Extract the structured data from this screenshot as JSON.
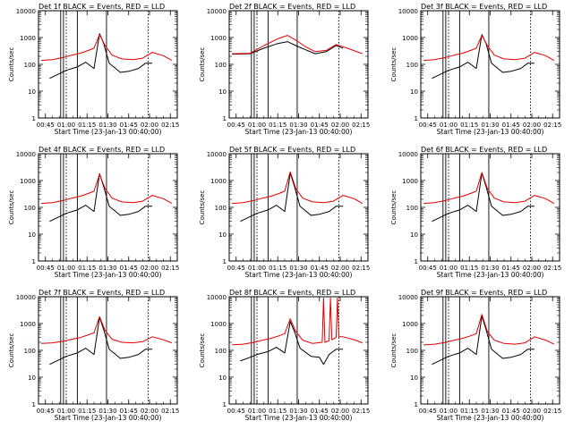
{
  "chart_data": [
    {
      "type": "line",
      "title": "Det 1f BLACK = Events, RED = LLD",
      "xlabel": "Start Time (23-Jan-13 00:40:00)",
      "ylabel": "Counts/sec",
      "yscale": "log",
      "ylim": [
        1,
        10000
      ],
      "x_ticks": [
        "00:45",
        "01:00",
        "01:15",
        "01:30",
        "01:45",
        "02:00",
        "02:15"
      ],
      "y_ticks": [
        "1",
        "10",
        "100",
        "1000",
        "10000"
      ],
      "solid_lines": [
        "00:56",
        "00:58",
        "01:08",
        "01:29"
      ],
      "dotted_lines": [
        "01:00",
        "01:59"
      ],
      "series": [
        {
          "name": "Events",
          "color": "#000000",
          "x": [
            "00:48",
            "00:55",
            "01:00",
            "01:08",
            "01:14",
            "01:20",
            "01:24",
            "01:27",
            "01:31",
            "01:39",
            "01:45",
            "01:52",
            "01:57",
            "02:02"
          ],
          "y": [
            30,
            45,
            60,
            80,
            120,
            70,
            1400,
            600,
            110,
            50,
            55,
            70,
            110,
            110
          ]
        },
        {
          "name": "LLD",
          "color": "#e00000",
          "x": [
            "00:42",
            "00:50",
            "00:58",
            "01:04",
            "01:10",
            "01:16",
            "01:20",
            "01:24",
            "01:28",
            "01:33",
            "01:40",
            "01:48",
            "01:55",
            "02:02",
            "02:10",
            "02:16"
          ],
          "y": [
            140,
            150,
            180,
            220,
            260,
            330,
            400,
            1300,
            500,
            220,
            160,
            150,
            170,
            280,
            210,
            140
          ]
        }
      ]
    },
    {
      "type": "line",
      "title": "Det 2f BLACK = Events, RED = LLD",
      "xlabel": "Start Time (23-Jan-13 00:40:00)",
      "ylabel": "Counts/sec",
      "yscale": "log",
      "ylim": [
        1,
        10000
      ],
      "x_ticks": [
        "00:45",
        "01:00",
        "01:15",
        "01:30",
        "01:45",
        "02:00",
        "02:15"
      ],
      "y_ticks": [
        "1",
        "10",
        "100",
        "1000",
        "10000"
      ],
      "solid_lines": [
        "00:56",
        "00:58",
        "01:08",
        "01:29"
      ],
      "dotted_lines": [
        "01:00",
        "01:59"
      ],
      "series": [
        {
          "name": "Events",
          "color": "#000000",
          "x": [
            "00:42",
            "00:55",
            "01:05",
            "01:15",
            "01:22",
            "01:28",
            "01:35",
            "01:42",
            "01:50",
            "01:57",
            "02:02"
          ],
          "y": [
            240,
            250,
            400,
            600,
            700,
            500,
            350,
            250,
            300,
            500,
            400
          ]
        },
        {
          "name": "LLD",
          "color": "#e00000",
          "x": [
            "00:42",
            "00:55",
            "01:05",
            "01:15",
            "01:22",
            "01:28",
            "01:35",
            "01:42",
            "01:50",
            "01:57",
            "02:05",
            "02:16"
          ],
          "y": [
            250,
            260,
            500,
            900,
            1200,
            800,
            450,
            300,
            330,
            550,
            400,
            250
          ]
        }
      ]
    },
    {
      "type": "line",
      "title": "Det 3f BLACK = Events, RED = LLD",
      "xlabel": "Start Time (23-Jan-13 00:40:00)",
      "ylabel": "Counts/sec",
      "yscale": "log",
      "ylim": [
        1,
        10000
      ],
      "x_ticks": [
        "00:45",
        "01:00",
        "01:15",
        "01:30",
        "01:45",
        "02:00",
        "02:15"
      ],
      "y_ticks": [
        "1",
        "10",
        "100",
        "1000",
        "10000"
      ],
      "solid_lines": [
        "00:56",
        "00:58",
        "01:08",
        "01:29"
      ],
      "dotted_lines": [
        "01:00",
        "01:59"
      ],
      "series": [
        {
          "name": "Events",
          "color": "#000000",
          "x": [
            "00:48",
            "00:55",
            "01:00",
            "01:08",
            "01:14",
            "01:20",
            "01:24",
            "01:27",
            "01:31",
            "01:39",
            "01:45",
            "01:52",
            "01:57",
            "02:02"
          ],
          "y": [
            30,
            45,
            60,
            80,
            120,
            70,
            1300,
            600,
            110,
            50,
            55,
            70,
            110,
            110
          ]
        },
        {
          "name": "LLD",
          "color": "#e00000",
          "x": [
            "00:42",
            "00:50",
            "00:58",
            "01:04",
            "01:10",
            "01:16",
            "01:20",
            "01:24",
            "01:28",
            "01:33",
            "01:40",
            "01:48",
            "01:55",
            "02:02",
            "02:10",
            "02:16"
          ],
          "y": [
            140,
            150,
            180,
            220,
            260,
            330,
            400,
            1200,
            500,
            220,
            160,
            150,
            170,
            280,
            210,
            140
          ]
        }
      ]
    },
    {
      "type": "line",
      "title": "Det 4f BLACK = Events, RED = LLD",
      "xlabel": "Start Time (23-Jan-13 00:40:00)",
      "ylabel": "Counts/sec",
      "yscale": "log",
      "ylim": [
        1,
        10000
      ],
      "x_ticks": [
        "00:45",
        "01:00",
        "01:15",
        "01:30",
        "01:45",
        "02:00",
        "02:15"
      ],
      "y_ticks": [
        "1",
        "10",
        "100",
        "1000",
        "10000"
      ],
      "solid_lines": [
        "00:56",
        "00:58",
        "01:08",
        "01:29"
      ],
      "dotted_lines": [
        "01:00",
        "01:59"
      ],
      "series": [
        {
          "name": "Events",
          "color": "#000000",
          "x": [
            "00:48",
            "00:55",
            "01:00",
            "01:08",
            "01:14",
            "01:20",
            "01:24",
            "01:27",
            "01:31",
            "01:39",
            "01:45",
            "01:52",
            "01:57",
            "02:02"
          ],
          "y": [
            30,
            45,
            60,
            80,
            120,
            70,
            1800,
            600,
            110,
            50,
            55,
            70,
            110,
            110
          ]
        },
        {
          "name": "LLD",
          "color": "#e00000",
          "x": [
            "00:42",
            "00:50",
            "00:58",
            "01:04",
            "01:10",
            "01:16",
            "01:20",
            "01:24",
            "01:28",
            "01:33",
            "01:40",
            "01:48",
            "01:55",
            "02:02",
            "02:10",
            "02:16"
          ],
          "y": [
            140,
            150,
            180,
            220,
            260,
            330,
            400,
            1700,
            500,
            220,
            160,
            150,
            170,
            280,
            210,
            140
          ]
        }
      ]
    },
    {
      "type": "line",
      "title": "Det 5f BLACK = Events, RED = LLD",
      "xlabel": "Start Time (23-Jan-13 00:40:00)",
      "ylabel": "Counts/sec",
      "yscale": "log",
      "ylim": [
        1,
        10000
      ],
      "x_ticks": [
        "00:45",
        "01:00",
        "01:15",
        "01:30",
        "01:45",
        "02:00",
        "02:15"
      ],
      "y_ticks": [
        "1",
        "10",
        "100",
        "1000",
        "10000"
      ],
      "solid_lines": [
        "00:56",
        "00:58",
        "01:08",
        "01:29"
      ],
      "dotted_lines": [
        "01:00",
        "01:59"
      ],
      "series": [
        {
          "name": "Events",
          "color": "#000000",
          "x": [
            "00:48",
            "00:55",
            "01:00",
            "01:08",
            "01:14",
            "01:20",
            "01:24",
            "01:27",
            "01:31",
            "01:39",
            "01:45",
            "01:52",
            "01:57",
            "02:02"
          ],
          "y": [
            30,
            45,
            60,
            80,
            120,
            70,
            1900,
            600,
            110,
            50,
            55,
            70,
            110,
            110
          ]
        },
        {
          "name": "LLD",
          "color": "#e00000",
          "x": [
            "00:42",
            "00:50",
            "00:58",
            "01:04",
            "01:10",
            "01:16",
            "01:20",
            "01:24",
            "01:28",
            "01:33",
            "01:40",
            "01:48",
            "01:55",
            "02:02",
            "02:10",
            "02:16"
          ],
          "y": [
            140,
            150,
            180,
            220,
            260,
            330,
            400,
            2100,
            500,
            220,
            160,
            150,
            170,
            280,
            210,
            140
          ]
        }
      ]
    },
    {
      "type": "line",
      "title": "Det 6f BLACK = Events, RED = LLD",
      "xlabel": "Start Time (23-Jan-13 00:40:00)",
      "ylabel": "Counts/sec",
      "yscale": "log",
      "ylim": [
        1,
        10000
      ],
      "x_ticks": [
        "00:45",
        "01:00",
        "01:15",
        "01:30",
        "01:45",
        "02:00",
        "02:15"
      ],
      "y_ticks": [
        "1",
        "10",
        "100",
        "1000",
        "10000"
      ],
      "solid_lines": [
        "00:56",
        "00:58",
        "01:08",
        "01:29"
      ],
      "dotted_lines": [
        "01:00",
        "01:59"
      ],
      "series": [
        {
          "name": "Events",
          "color": "#000000",
          "x": [
            "00:48",
            "00:55",
            "01:00",
            "01:08",
            "01:14",
            "01:20",
            "01:24",
            "01:27",
            "01:31",
            "01:39",
            "01:45",
            "01:52",
            "01:57",
            "02:02"
          ],
          "y": [
            30,
            45,
            60,
            80,
            120,
            70,
            1900,
            600,
            110,
            50,
            55,
            70,
            110,
            110
          ]
        },
        {
          "name": "LLD",
          "color": "#e00000",
          "x": [
            "00:42",
            "00:50",
            "00:58",
            "01:04",
            "01:10",
            "01:16",
            "01:20",
            "01:24",
            "01:28",
            "01:33",
            "01:40",
            "01:48",
            "01:55",
            "02:02",
            "02:10",
            "02:16"
          ],
          "y": [
            140,
            150,
            180,
            220,
            260,
            330,
            400,
            2000,
            500,
            220,
            160,
            150,
            170,
            280,
            210,
            140
          ]
        }
      ]
    },
    {
      "type": "line",
      "title": "Det 7f BLACK = Events, RED = LLD",
      "xlabel": "Start Time (23-Jan-13 00:40:00)",
      "ylabel": "Counts/sec",
      "yscale": "log",
      "ylim": [
        1,
        10000
      ],
      "x_ticks": [
        "00:45",
        "01:00",
        "01:15",
        "01:30",
        "01:45",
        "02:00",
        "02:15"
      ],
      "y_ticks": [
        "1",
        "10",
        "100",
        "1000",
        "10000"
      ],
      "solid_lines": [
        "00:56",
        "00:58",
        "01:08",
        "01:29"
      ],
      "dotted_lines": [
        "01:00",
        "01:59"
      ],
      "series": [
        {
          "name": "Events",
          "color": "#000000",
          "x": [
            "00:48",
            "00:55",
            "01:00",
            "01:08",
            "01:14",
            "01:20",
            "01:24",
            "01:27",
            "01:31",
            "01:39",
            "01:45",
            "01:52",
            "01:57",
            "02:02"
          ],
          "y": [
            30,
            45,
            60,
            80,
            120,
            70,
            1700,
            600,
            110,
            50,
            55,
            70,
            110,
            110
          ]
        },
        {
          "name": "LLD",
          "color": "#e00000",
          "x": [
            "00:42",
            "00:50",
            "00:58",
            "01:04",
            "01:10",
            "01:16",
            "01:20",
            "01:24",
            "01:28",
            "01:33",
            "01:40",
            "01:48",
            "01:55",
            "02:02",
            "02:10",
            "02:16"
          ],
          "y": [
            180,
            190,
            220,
            260,
            300,
            380,
            450,
            1800,
            550,
            260,
            200,
            190,
            210,
            320,
            250,
            190
          ]
        }
      ]
    },
    {
      "type": "line",
      "title": "Det 8f BLACK = Events, RED = LLD",
      "xlabel": "Start Time (23-Jan-13 00:40:00)",
      "ylabel": "Counts/sec",
      "yscale": "log",
      "ylim": [
        1,
        10000
      ],
      "x_ticks": [
        "00:45",
        "01:00",
        "01:15",
        "01:30",
        "01:45",
        "02:00",
        "02:15"
      ],
      "y_ticks": [
        "1",
        "10",
        "100",
        "1000",
        "10000"
      ],
      "solid_lines": [
        "00:56",
        "00:58",
        "01:08",
        "01:29"
      ],
      "dotted_lines": [
        "01:00",
        "01:59"
      ],
      "series": [
        {
          "name": "Events",
          "color": "#000000",
          "x": [
            "00:48",
            "00:55",
            "01:00",
            "01:08",
            "01:14",
            "01:20",
            "01:24",
            "01:27",
            "01:31",
            "01:39",
            "01:45",
            "01:48",
            "01:52",
            "01:57",
            "02:02"
          ],
          "y": [
            40,
            55,
            70,
            90,
            130,
            80,
            1200,
            500,
            120,
            60,
            55,
            30,
            70,
            110,
            110
          ]
        },
        {
          "name": "LLD",
          "color": "#e00000",
          "x": [
            "00:42",
            "00:50",
            "00:58",
            "01:04",
            "01:10",
            "01:16",
            "01:20",
            "01:24",
            "01:28",
            "01:33",
            "01:40",
            "01:47",
            "01:48",
            "01:49",
            "01:52",
            "01:53",
            "01:54",
            "01:57",
            "01:58",
            "01:59",
            "02:02",
            "02:10",
            "02:16"
          ],
          "y": [
            160,
            170,
            200,
            240,
            280,
            350,
            420,
            1500,
            500,
            240,
            180,
            200,
            9000,
            200,
            230,
            9000,
            250,
            300,
            9000,
            320,
            320,
            250,
            190
          ]
        }
      ]
    },
    {
      "type": "line",
      "title": "Det 9f BLACK = Events, RED = LLD",
      "xlabel": "Start Time (23-Jan-13 00:40:00)",
      "ylabel": "Counts/sec",
      "yscale": "log",
      "ylim": [
        1,
        10000
      ],
      "x_ticks": [
        "00:45",
        "01:00",
        "01:15",
        "01:30",
        "01:45",
        "02:00",
        "02:15"
      ],
      "y_ticks": [
        "1",
        "10",
        "100",
        "1000",
        "10000"
      ],
      "solid_lines": [
        "00:56",
        "00:58",
        "01:08",
        "01:29"
      ],
      "dotted_lines": [
        "01:00",
        "01:59"
      ],
      "series": [
        {
          "name": "Events",
          "color": "#000000",
          "x": [
            "00:48",
            "00:55",
            "01:00",
            "01:08",
            "01:14",
            "01:20",
            "01:24",
            "01:27",
            "01:31",
            "01:39",
            "01:45",
            "01:52",
            "01:57",
            "02:02"
          ],
          "y": [
            30,
            45,
            60,
            80,
            120,
            70,
            1900,
            600,
            110,
            50,
            55,
            70,
            110,
            110
          ]
        },
        {
          "name": "LLD",
          "color": "#e00000",
          "x": [
            "00:42",
            "00:50",
            "00:58",
            "01:04",
            "01:10",
            "01:16",
            "01:20",
            "01:24",
            "01:28",
            "01:33",
            "01:40",
            "01:48",
            "01:55",
            "02:02",
            "02:10",
            "02:16"
          ],
          "y": [
            160,
            170,
            200,
            240,
            280,
            350,
            420,
            2200,
            500,
            240,
            180,
            170,
            190,
            320,
            240,
            170
          ]
        }
      ]
    }
  ]
}
